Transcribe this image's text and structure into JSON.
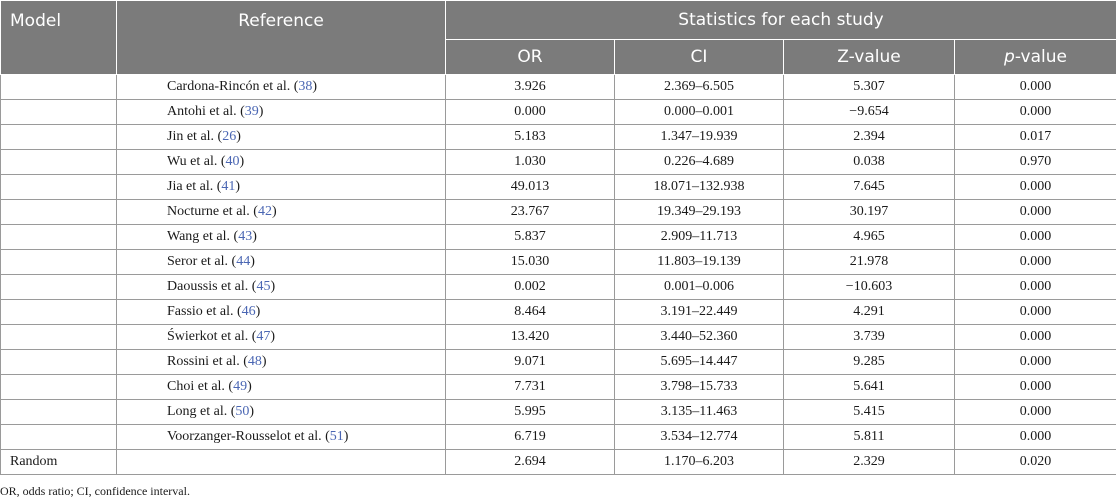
{
  "header": {
    "model": "Model",
    "reference": "Reference",
    "group": "Statistics for each study",
    "or": "OR",
    "ci": "CI",
    "z": "Z-value",
    "p_italic": "p",
    "p_rest": "-value"
  },
  "rows": [
    {
      "ref": "Cardona-Rincón et al. (",
      "cite": "38",
      "close": ")",
      "or": "3.926",
      "ci": "2.369–6.505",
      "z": "5.307",
      "p": "0.000"
    },
    {
      "ref": "Antohi et al. (",
      "cite": "39",
      "close": ")",
      "or": "0.000",
      "ci": "0.000–0.001",
      "z": "−9.654",
      "p": "0.000"
    },
    {
      "ref": "Jin et al. (",
      "cite": "26",
      "close": ")",
      "or": "5.183",
      "ci": "1.347–19.939",
      "z": "2.394",
      "p": "0.017"
    },
    {
      "ref": "Wu et al. (",
      "cite": "40",
      "close": ")",
      "or": "1.030",
      "ci": "0.226–4.689",
      "z": "0.038",
      "p": "0.970"
    },
    {
      "ref": "Jia et al. (",
      "cite": "41",
      "close": ")",
      "or": "49.013",
      "ci": "18.071–132.938",
      "z": "7.645",
      "p": "0.000"
    },
    {
      "ref": "Nocturne et al. (",
      "cite": "42",
      "close": ")",
      "or": "23.767",
      "ci": "19.349–29.193",
      "z": "30.197",
      "p": "0.000"
    },
    {
      "ref": "Wang et al. (",
      "cite": "43",
      "close": ")",
      "or": "5.837",
      "ci": "2.909–11.713",
      "z": "4.965",
      "p": "0.000"
    },
    {
      "ref": "Seror et al. (",
      "cite": "44",
      "close": ")",
      "or": "15.030",
      "ci": "11.803–19.139",
      "z": "21.978",
      "p": "0.000"
    },
    {
      "ref": "Daoussis et al. (",
      "cite": "45",
      "close": ")",
      "or": "0.002",
      "ci": "0.001–0.006",
      "z": "−10.603",
      "p": "0.000"
    },
    {
      "ref": "Fassio et al. (",
      "cite": "46",
      "close": ")",
      "or": "8.464",
      "ci": "3.191–22.449",
      "z": "4.291",
      "p": "0.000"
    },
    {
      "ref": "Świerkot et al. (",
      "cite": "47",
      "close": ")",
      "or": "13.420",
      "ci": "3.440–52.360",
      "z": "3.739",
      "p": "0.000"
    },
    {
      "ref": "Rossini et al. (",
      "cite": "48",
      "close": ")",
      "or": "9.071",
      "ci": "5.695–14.447",
      "z": "9.285",
      "p": "0.000"
    },
    {
      "ref": "Choi et al. (",
      "cite": "49",
      "close": ")",
      "or": "7.731",
      "ci": "3.798–15.733",
      "z": "5.641",
      "p": "0.000"
    },
    {
      "ref": "Long et al. (",
      "cite": "50",
      "close": ")",
      "or": "5.995",
      "ci": "3.135–11.463",
      "z": "5.415",
      "p": "0.000"
    },
    {
      "ref": "Voorzanger-Rousselot et al. (",
      "cite": "51",
      "close": ")",
      "or": "6.719",
      "ci": "3.534–12.774",
      "z": "5.811",
      "p": "0.000"
    }
  ],
  "summary": {
    "model": "Random",
    "or": "2.694",
    "ci": "1.170–6.203",
    "z": "2.329",
    "p": "0.020"
  },
  "footnote": "OR, odds ratio; CI, confidence interval."
}
